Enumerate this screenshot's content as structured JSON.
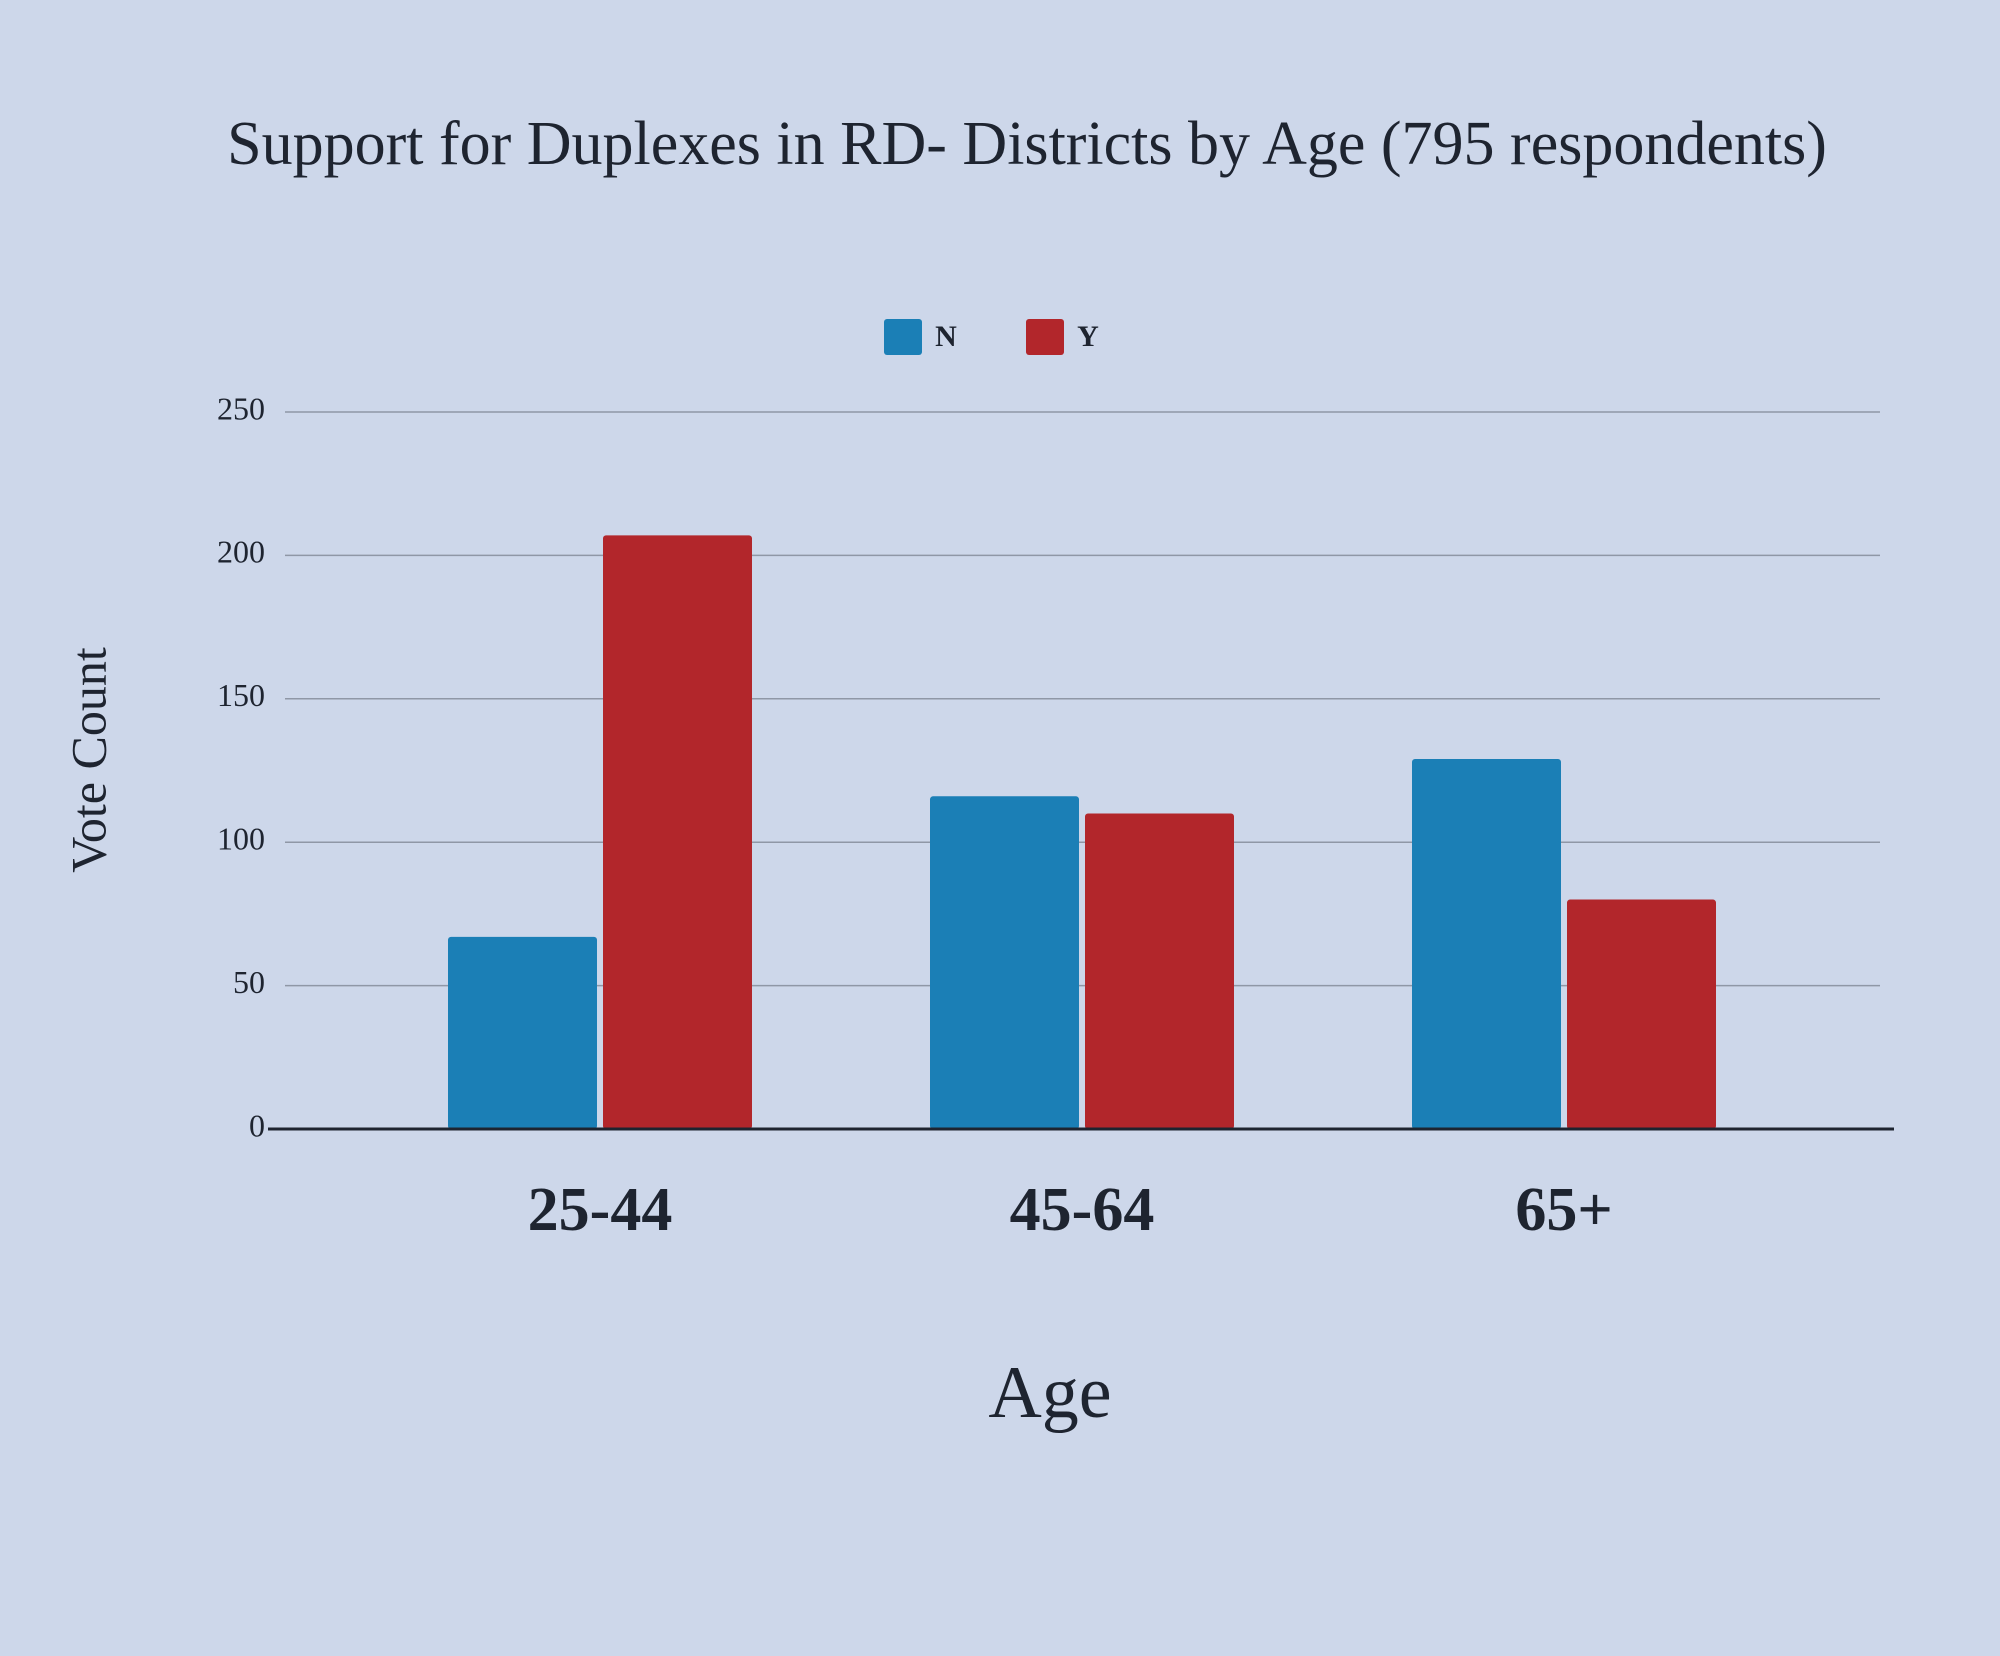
{
  "chart_data": {
    "type": "bar",
    "title": "Support for Duplexes in RD- Districts by Age (795 respondents)",
    "x_label": "Age",
    "y_label": "Vote Count",
    "categories": [
      "25-44",
      "45-64",
      "65+"
    ],
    "series": [
      {
        "name": "N",
        "color": "#1b7fb6",
        "values": [
          67,
          116,
          129
        ]
      },
      {
        "name": "Y",
        "color": "#b2262b",
        "values": [
          207,
          110,
          80
        ]
      }
    ],
    "ylim": [
      0,
      250
    ],
    "yticks": [
      0,
      50,
      100,
      150,
      200,
      250
    ],
    "grid": true,
    "legend": "top"
  }
}
